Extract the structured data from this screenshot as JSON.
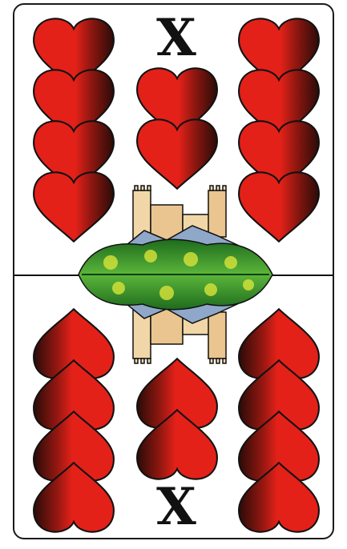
{
  "card": {
    "rank_top": "X",
    "rank_bottom": "X",
    "suit": "hearts",
    "hearts_count": 10,
    "colors": {
      "heart_red": "#e32119",
      "heart_dark": "#2a0b08",
      "outline": "#111111",
      "tree_green": "#2f8f2a",
      "castle": "#f1d7a8"
    },
    "icons": [
      "heart-icon",
      "castle-icon",
      "tree-icon"
    ]
  }
}
